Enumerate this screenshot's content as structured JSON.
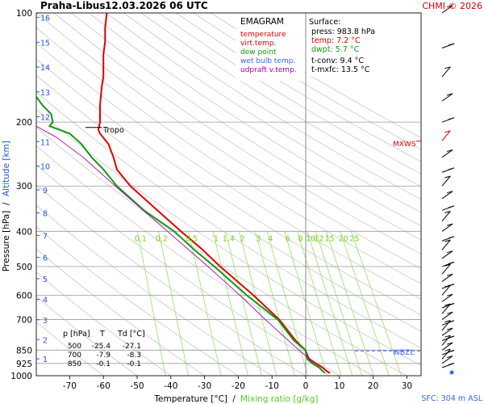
{
  "header": {
    "station": "Praha-Libus",
    "datetime": "12.03.2026 06 UTC",
    "credit": "CHMI © 2026"
  },
  "legend": {
    "title": "EMAGRAM",
    "items": [
      {
        "label": "temperature",
        "color": "#e00000"
      },
      {
        "label": "virt.temp.",
        "color": "#e00000"
      },
      {
        "label": "dew point",
        "color": "#119911"
      },
      {
        "label": "wet bulb temp.",
        "color": "#3366ff"
      },
      {
        "label": "udpraft v.temp.",
        "color": "#aa00aa"
      }
    ]
  },
  "surface": {
    "title": "Surface:",
    "press": "press: 983.8 hPa",
    "temp": "temp: 7.2 °C",
    "dwpt": "dwpt: 5.7 °C",
    "tconv": "t-conv: 9.4 °C",
    "tmxfc": "t-mxfc: 13.5 °C"
  },
  "table": {
    "headers": [
      "p [hPa]",
      "T",
      "Td [°C]"
    ],
    "rows": [
      [
        "500",
        "-25.4",
        "-27.1"
      ],
      [
        "700",
        "-7.9",
        "-8.3"
      ],
      [
        "850",
        "-0.1",
        "-0.1"
      ]
    ]
  },
  "annotations": {
    "tropo": "Tropo",
    "mxws": "MXWS",
    "wbzl": "WBZL",
    "sfc": "SFC: 304 m ASL"
  },
  "chart_data": {
    "type": "line",
    "title": "EMAGRAM",
    "xlabel_temperature": "Temperature [°C]",
    "xlabel_separator": "/",
    "xlabel_mixing": "Mixing ratio [g/kg]",
    "ylabel_pressure": "Pressure [hPa]",
    "ylabel_separator": "/",
    "ylabel_altitude": "Altitude [km]",
    "x_ticks": [
      -70,
      -60,
      -50,
      -40,
      -30,
      -20,
      -10,
      0,
      10,
      20,
      30
    ],
    "p_ticks": [
      100,
      200,
      300,
      400,
      500,
      600,
      700,
      850,
      925,
      1000
    ],
    "alt_ticks": [
      1,
      2,
      3,
      4,
      5,
      6,
      7,
      8,
      9,
      10,
      11,
      12,
      13,
      14,
      15,
      16
    ],
    "mixing_ratio_labels": [
      "0.1",
      "0.2",
      "0.5",
      "1",
      "1.4",
      "2",
      "3",
      "4",
      "6",
      "8",
      "10",
      "12",
      "15",
      "20",
      "25"
    ],
    "xlim": [
      -80,
      35
    ],
    "ylim_hpa": [
      1000,
      100
    ],
    "series": [
      {
        "name": "temperature",
        "color": "#e00000",
        "points": [
          [
            983.8,
            7.2
          ],
          [
            970,
            6.2
          ],
          [
            950,
            5.0
          ],
          [
            925,
            3.0
          ],
          [
            900,
            1.0
          ],
          [
            850,
            -0.1
          ],
          [
            800,
            -3.0
          ],
          [
            700,
            -7.9
          ],
          [
            600,
            -15.5
          ],
          [
            500,
            -25.4
          ],
          [
            450,
            -30.5
          ],
          [
            400,
            -37.0
          ],
          [
            350,
            -44.0
          ],
          [
            300,
            -52.0
          ],
          [
            270,
            -56.0
          ],
          [
            250,
            -57.0
          ],
          [
            230,
            -58.5
          ],
          [
            215,
            -61.0
          ],
          [
            210,
            -61.5
          ],
          [
            200,
            -61.0
          ],
          [
            180,
            -61.0
          ],
          [
            160,
            -60.5
          ],
          [
            150,
            -60.0
          ],
          [
            130,
            -60.0
          ],
          [
            120,
            -59.5
          ],
          [
            110,
            -59.5
          ],
          [
            100,
            -59.0
          ]
        ]
      },
      {
        "name": "dew point",
        "color": "#119911",
        "points": [
          [
            983.8,
            5.7
          ],
          [
            970,
            5.0
          ],
          [
            950,
            4.0
          ],
          [
            925,
            2.0
          ],
          [
            900,
            0.5
          ],
          [
            850,
            -0.1
          ],
          [
            800,
            -3.5
          ],
          [
            700,
            -8.3
          ],
          [
            600,
            -17.5
          ],
          [
            500,
            -27.1
          ],
          [
            450,
            -33.0
          ],
          [
            400,
            -39.0
          ],
          [
            350,
            -48.0
          ],
          [
            300,
            -56.0
          ],
          [
            270,
            -60.0
          ],
          [
            250,
            -63.5
          ],
          [
            230,
            -66.5
          ],
          [
            215,
            -70.0
          ],
          [
            205,
            -76.0
          ],
          [
            200,
            -75.0
          ],
          [
            190,
            -75.5
          ],
          [
            180,
            -78.0
          ],
          [
            170,
            -80.0
          ]
        ]
      },
      {
        "name": "udpraft v.temp.",
        "color": "#aa00aa",
        "points": [
          [
            925,
            3.0
          ],
          [
            850,
            -2.0
          ],
          [
            700,
            -12.0
          ],
          [
            600,
            -19.5
          ],
          [
            500,
            -29.0
          ],
          [
            400,
            -41.0
          ],
          [
            300,
            -56.5
          ],
          [
            250,
            -66.0
          ],
          [
            220,
            -74.0
          ],
          [
            205,
            -80.0
          ]
        ]
      }
    ],
    "wind_barbs_hpa": [
      100,
      125,
      150,
      175,
      200,
      225,
      250,
      275,
      300,
      325,
      350,
      375,
      400,
      425,
      450,
      475,
      500,
      525,
      550,
      575,
      600,
      625,
      650,
      675,
      700,
      725,
      750,
      775,
      800,
      825,
      850,
      875,
      900,
      925,
      950
    ],
    "markers": {
      "tropopause_hpa": 208,
      "mxws_hpa": 228,
      "wbzl_hpa": 850
    }
  }
}
